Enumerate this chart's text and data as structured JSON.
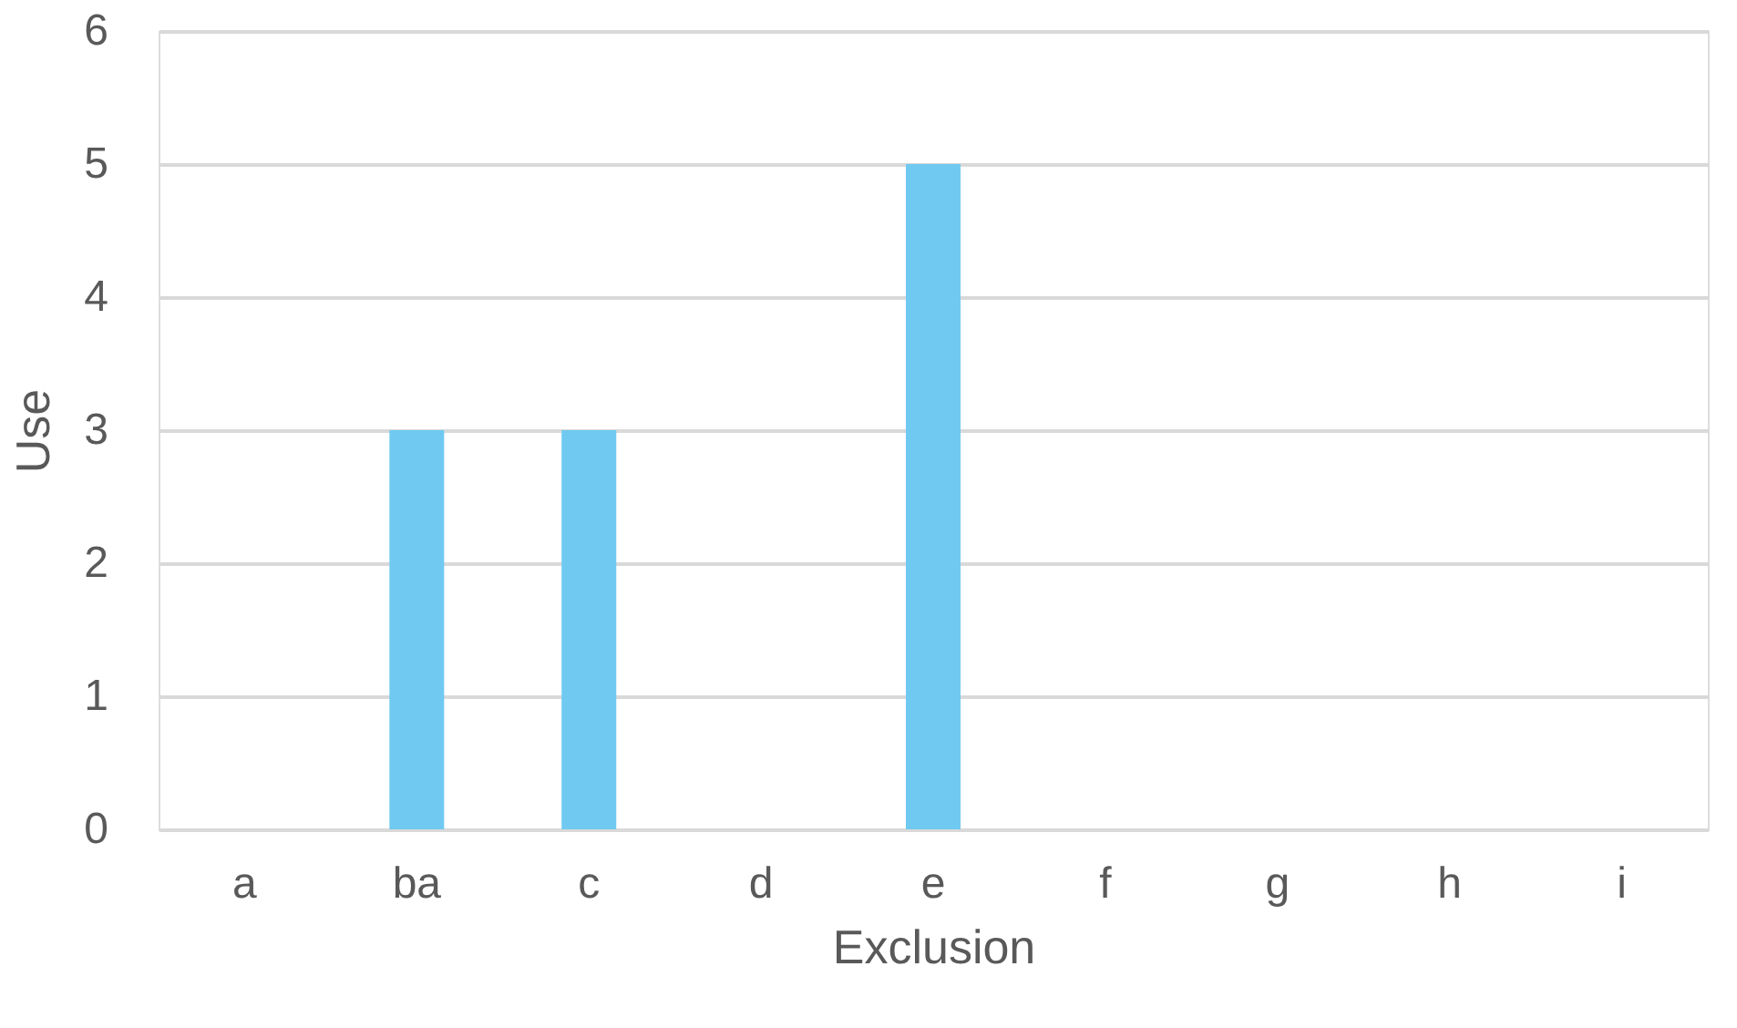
{
  "chart_data": {
    "type": "bar",
    "xlabel": "Exclusion",
    "ylabel": "Use",
    "categories": [
      "a",
      "ba",
      "c",
      "d",
      "e",
      "f",
      "g",
      "h",
      "i"
    ],
    "values": [
      0,
      3,
      3,
      0,
      5,
      0,
      0,
      0,
      0
    ],
    "color": "#70c9f0",
    "ylim": [
      0,
      6
    ],
    "yticks": [
      0,
      1,
      2,
      3,
      4,
      5,
      6
    ],
    "grid": "y"
  }
}
